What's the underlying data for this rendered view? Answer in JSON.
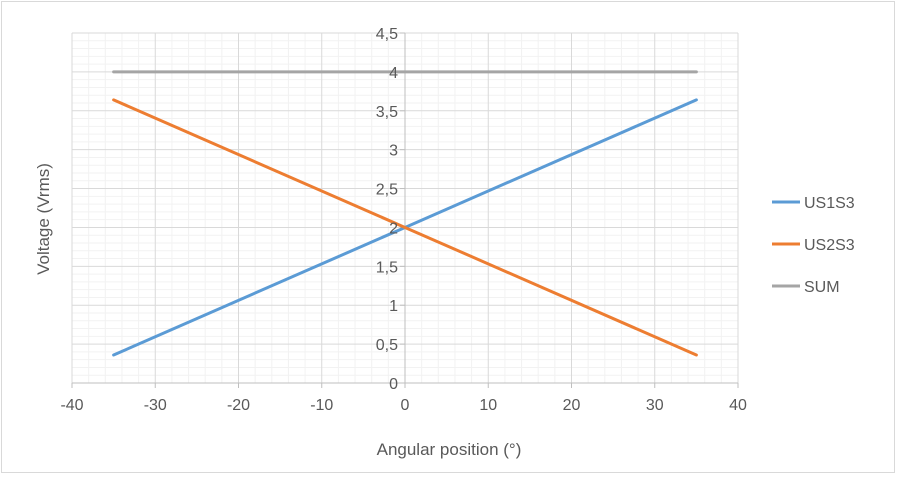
{
  "chart_data": {
    "type": "scatter",
    "xlabel": "Angular position (°)",
    "ylabel": "Voltage (Vrms)",
    "xlim": [
      -40,
      40
    ],
    "ylim": [
      0,
      4.5
    ],
    "x_ticks": [
      -40,
      -30,
      -20,
      -10,
      0,
      10,
      20,
      30,
      40
    ],
    "x_tick_labels": [
      "-40",
      "-30",
      "-20",
      "-10",
      "0",
      "10",
      "20",
      "30",
      "40"
    ],
    "y_ticks": [
      0,
      0.5,
      1,
      1.5,
      2,
      2.5,
      3,
      3.5,
      4,
      4.5
    ],
    "y_tick_labels": [
      "0",
      "0,5",
      "1",
      "1,5",
      "2",
      "2,5",
      "3",
      "3,5",
      "4",
      "4,5"
    ],
    "grid": true,
    "legend_position": "right",
    "series": [
      {
        "name": "US1S3",
        "color": "#5b9bd5",
        "x": [
          -35,
          0,
          35
        ],
        "y": [
          0.36,
          2.0,
          3.64
        ]
      },
      {
        "name": "US2S3",
        "color": "#ed7d31",
        "x": [
          -35,
          0,
          35
        ],
        "y": [
          3.64,
          2.0,
          0.36
        ]
      },
      {
        "name": "SUM",
        "color": "#a5a5a5",
        "x": [
          -35,
          0,
          35
        ],
        "y": [
          4.0,
          4.0,
          4.0
        ]
      }
    ]
  }
}
